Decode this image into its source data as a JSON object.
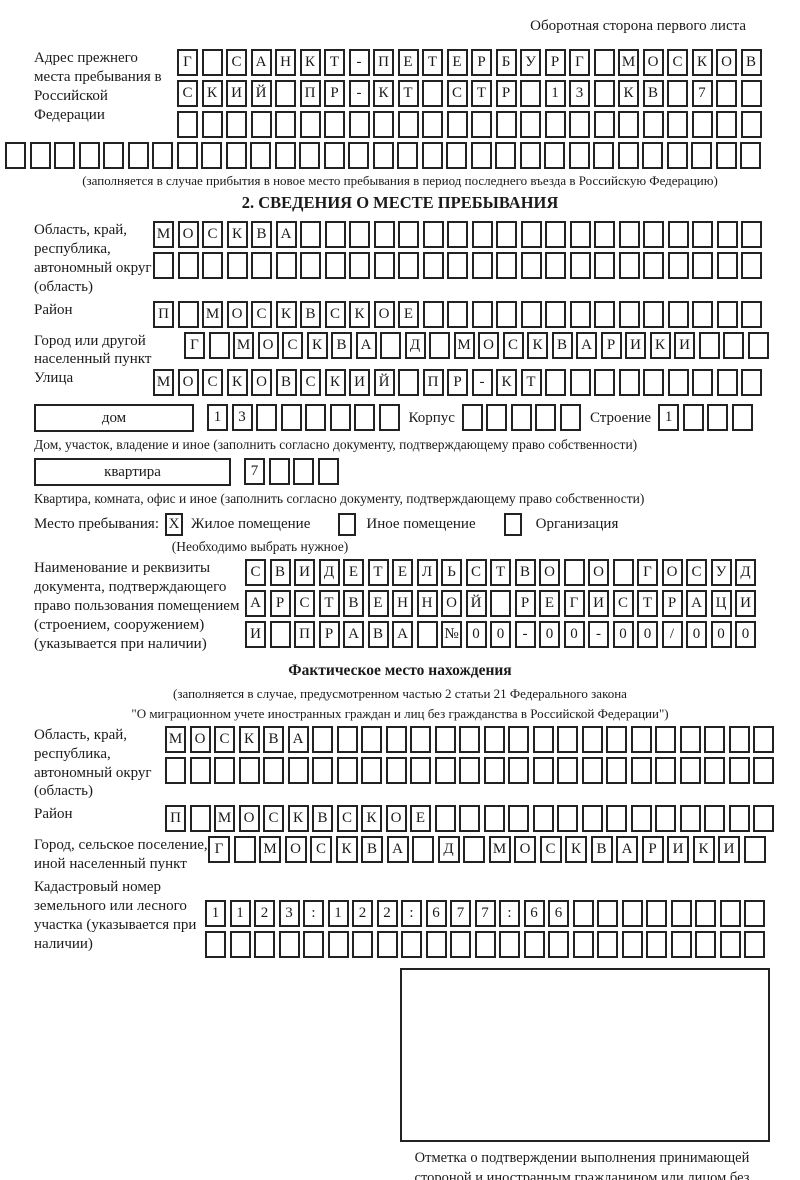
{
  "page": {
    "top_note": "Оборотная сторона первого листа"
  },
  "prev_address": {
    "label": "Адрес прежнего места пребывания в Российской Федерации",
    "r1": [
      "Г",
      "",
      "С",
      "А",
      "Н",
      "К",
      "Т",
      "-",
      "П",
      "Е",
      "Т",
      "Е",
      "Р",
      "Б",
      "У",
      "Р",
      "Г",
      "",
      "М",
      "О",
      "С",
      "К",
      "О",
      "В"
    ],
    "r2": [
      "С",
      "К",
      "И",
      "Й",
      "",
      "П",
      "Р",
      "-",
      "К",
      "Т",
      "",
      "С",
      "Т",
      "Р",
      "",
      "1",
      "3",
      "",
      "К",
      "В",
      "",
      "7",
      "",
      ""
    ],
    "r3": [
      "",
      "",
      "",
      "",
      "",
      "",
      "",
      "",
      "",
      "",
      "",
      "",
      "",
      "",
      "",
      "",
      "",
      "",
      "",
      "",
      "",
      "",
      "",
      ""
    ],
    "r4_full": [
      "",
      "",
      "",
      "",
      "",
      "",
      "",
      "",
      "",
      "",
      "",
      "",
      "",
      "",
      "",
      "",
      "",
      "",
      "",
      "",
      "",
      "",
      "",
      "",
      "",
      "",
      "",
      "",
      "",
      "",
      ""
    ],
    "caption": "(заполняется в случае прибытия в новое место пребывания в период последнего въезда в Российскую Федерацию)"
  },
  "section2": {
    "title": "2. СВЕДЕНИЯ О МЕСТЕ ПРЕБЫВАНИЯ",
    "region": {
      "label": "Область, край, республика, автономный округ (область)",
      "r1": [
        "М",
        "О",
        "С",
        "К",
        "В",
        "А",
        "",
        "",
        "",
        "",
        "",
        "",
        "",
        "",
        "",
        "",
        "",
        "",
        "",
        "",
        "",
        "",
        "",
        "",
        ""
      ],
      "r2": [
        "",
        "",
        "",
        "",
        "",
        "",
        "",
        "",
        "",
        "",
        "",
        "",
        "",
        "",
        "",
        "",
        "",
        "",
        "",
        "",
        "",
        "",
        "",
        "",
        ""
      ]
    },
    "district": {
      "label": "Район",
      "r1": [
        "П",
        "",
        "М",
        "О",
        "С",
        "К",
        "В",
        "С",
        "К",
        "О",
        "Е",
        "",
        "",
        "",
        "",
        "",
        "",
        "",
        "",
        "",
        "",
        "",
        "",
        "",
        ""
      ]
    },
    "city": {
      "label": "Город или другой населенный пункт",
      "r1": [
        "Г",
        "",
        "М",
        "О",
        "С",
        "К",
        "В",
        "А",
        "",
        "Д",
        "",
        "М",
        "О",
        "С",
        "К",
        "В",
        "А",
        "Р",
        "И",
        "К",
        "И",
        "",
        "",
        ""
      ]
    },
    "street": {
      "label": "Улица",
      "r1": [
        "М",
        "О",
        "С",
        "К",
        "О",
        "В",
        "С",
        "К",
        "И",
        "Й",
        "",
        "П",
        "Р",
        "-",
        "К",
        "Т",
        "",
        "",
        "",
        "",
        "",
        "",
        "",
        "",
        ""
      ]
    },
    "house": {
      "box_label": "дом",
      "cells": [
        "1",
        "3",
        "",
        "",
        "",
        "",
        "",
        ""
      ],
      "korpus_label": "Корпус",
      "korpus_cells": [
        "",
        "",
        "",
        "",
        ""
      ],
      "stroenie_label": "Строение",
      "stroenie_cells": [
        "1",
        "",
        "",
        ""
      ],
      "caption": "Дом, участок, владение и иное (заполнить согласно документу, подтверждающему право собственности)"
    },
    "flat": {
      "box_label": "квартира",
      "cells": [
        "7",
        "",
        "",
        ""
      ],
      "caption": "Квартира, комната, офис и иное (заполнить согласно документу, подтверждающему право собственности)"
    },
    "stay_type": {
      "label": "Место пребывания:",
      "options": [
        {
          "label": "Жилое помещение",
          "mark": "X"
        },
        {
          "label": "Иное помещение",
          "mark": ""
        },
        {
          "label": "Организация",
          "mark": ""
        }
      ],
      "caption": "(Необходимо выбрать нужное)"
    },
    "document": {
      "label": "Наименование и реквизиты документа, подтверждающего право пользования помещением (строением, сооружением) (указывается при наличии)",
      "r1": [
        "С",
        "В",
        "И",
        "Д",
        "Е",
        "Т",
        "Е",
        "Л",
        "Ь",
        "С",
        "Т",
        "В",
        "О",
        "",
        "О",
        "",
        "Г",
        "О",
        "С",
        "У",
        "Д"
      ],
      "r2": [
        "А",
        "Р",
        "С",
        "Т",
        "В",
        "Е",
        "Н",
        "Н",
        "О",
        "Й",
        "",
        "Р",
        "Е",
        "Г",
        "И",
        "С",
        "Т",
        "Р",
        "А",
        "Ц",
        "И"
      ],
      "r3": [
        "И",
        "",
        "П",
        "Р",
        "А",
        "В",
        "А",
        "",
        "№",
        "0",
        "0",
        "-",
        "0",
        "0",
        "-",
        "0",
        "0",
        "/",
        "0",
        "0",
        "0"
      ]
    }
  },
  "actual_location": {
    "title": "Фактическое место нахождения",
    "caption_line1": "(заполняется в случае, предусмотренном частью 2 статьи 21 Федерального закона",
    "caption_line2": "\"О миграционном учете иностранных граждан и лиц без гражданства в Российской Федерации\")",
    "region": {
      "label": "Область, край, республика, автономный округ (область)",
      "r1": [
        "М",
        "О",
        "С",
        "К",
        "В",
        "А",
        "",
        "",
        "",
        "",
        "",
        "",
        "",
        "",
        "",
        "",
        "",
        "",
        "",
        "",
        "",
        "",
        "",
        "",
        ""
      ],
      "r2": [
        "",
        "",
        "",
        "",
        "",
        "",
        "",
        "",
        "",
        "",
        "",
        "",
        "",
        "",
        "",
        "",
        "",
        "",
        "",
        "",
        "",
        "",
        "",
        "",
        ""
      ]
    },
    "district": {
      "label": "Район",
      "r1": [
        "П",
        "",
        "М",
        "О",
        "С",
        "К",
        "В",
        "С",
        "К",
        "О",
        "Е",
        "",
        "",
        "",
        "",
        "",
        "",
        "",
        "",
        "",
        "",
        "",
        "",
        "",
        ""
      ]
    },
    "city": {
      "label": "Город, сельское поселение, иной населенный пункт",
      "r1": [
        "Г",
        "",
        "М",
        "О",
        "С",
        "К",
        "В",
        "А",
        "",
        "Д",
        "",
        "М",
        "О",
        "С",
        "К",
        "В",
        "А",
        "Р",
        "И",
        "К",
        "И",
        ""
      ]
    },
    "cadastre": {
      "label": "Кадастровый номер земельного или лесного участка (указывается при наличии)",
      "r1": [
        "1",
        "1",
        "2",
        "3",
        ":",
        "1",
        "2",
        "2",
        ":",
        "6",
        "7",
        "7",
        ":",
        "6",
        "6",
        "",
        "",
        "",
        "",
        "",
        "",
        "",
        ""
      ],
      "r2": [
        "",
        "",
        "",
        "",
        "",
        "",
        "",
        "",
        "",
        "",
        "",
        "",
        "",
        "",
        "",
        "",
        "",
        "",
        "",
        "",
        "",
        "",
        ""
      ]
    },
    "stamp_caption": "Отметка о подтверждении выполнения принимающей стороной и иностранным гражданином или лицом без гражданства действий, необходимых для его постановки на учет по месту пребывания"
  }
}
